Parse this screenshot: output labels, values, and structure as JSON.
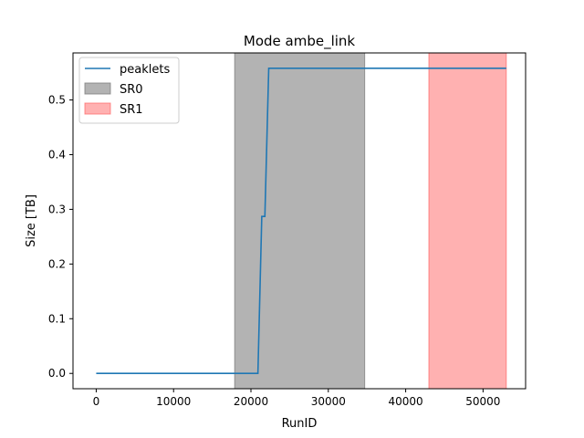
{
  "chart_data": {
    "type": "line",
    "title": "Mode ambe_link",
    "xlabel": "RunID",
    "ylabel": "Size [TB]",
    "xlim": [
      -3000,
      55500
    ],
    "ylim": [
      -0.028,
      0.586
    ],
    "xticks": [
      0,
      10000,
      20000,
      30000,
      40000,
      50000
    ],
    "yticks": [
      0.0,
      0.1,
      0.2,
      0.3,
      0.4,
      0.5
    ],
    "xtick_labels": [
      "0",
      "10000",
      "20000",
      "30000",
      "40000",
      "50000"
    ],
    "ytick_labels": [
      "0.0",
      "0.1",
      "0.2",
      "0.3",
      "0.4",
      "0.5"
    ],
    "grid": false,
    "legend_position": "upper left",
    "series": [
      {
        "name": "peaklets",
        "color": "#1f77b4",
        "x": [
          0,
          20900,
          21400,
          21800,
          22300,
          22600,
          53000
        ],
        "y": [
          0.0,
          0.0,
          0.287,
          0.287,
          0.558,
          0.558,
          0.558
        ]
      }
    ],
    "spans": [
      {
        "name": "SR0",
        "x0": 17900,
        "x1": 34700,
        "color": "#808080",
        "alpha": 0.6
      },
      {
        "name": "SR1",
        "x0": 43000,
        "x1": 53000,
        "color": "#ff6464",
        "alpha": 0.5
      }
    ]
  }
}
